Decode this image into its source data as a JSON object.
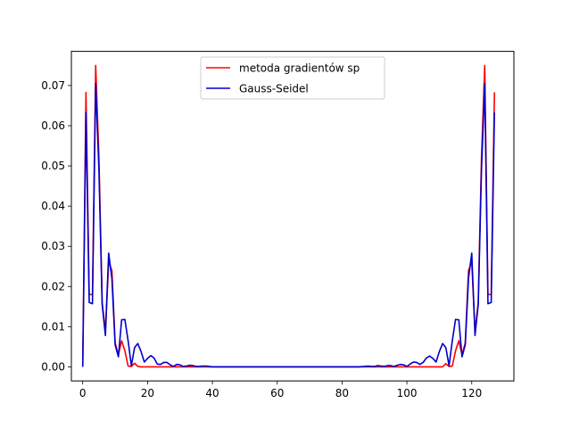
{
  "chart_data": {
    "type": "line",
    "title": "",
    "xlabel": "",
    "ylabel": "",
    "xlim": [
      -3.5,
      133.0
    ],
    "ylim": [
      -0.0035,
      0.0785
    ],
    "xticks": [
      0,
      20,
      40,
      60,
      80,
      100,
      120
    ],
    "xtick_labels": [
      "0",
      "20",
      "40",
      "60",
      "80",
      "100",
      "120"
    ],
    "yticks": [
      0.0,
      0.01,
      0.02,
      0.03,
      0.04,
      0.05,
      0.06,
      0.07
    ],
    "ytick_labels": [
      "0.00",
      "0.01",
      "0.02",
      "0.03",
      "0.04",
      "0.05",
      "0.06",
      "0.07"
    ],
    "grid": false,
    "legend_position": "top-center",
    "series": [
      {
        "name": "metoda gradientów sp",
        "color": "#ff0000",
        "x": [
          0,
          1,
          2,
          3,
          4,
          5,
          6,
          7,
          8,
          9,
          10,
          11,
          12,
          13,
          14,
          15,
          16,
          17,
          18,
          30,
          60,
          90,
          108,
          109,
          110,
          111,
          112,
          113,
          114,
          115,
          116,
          117,
          118,
          119,
          120,
          121,
          122,
          123,
          124,
          125,
          126,
          127
        ],
        "y": [
          0.0,
          0.0683,
          0.018,
          0.018,
          0.075,
          0.052,
          0.016,
          0.009,
          0.026,
          0.024,
          0.006,
          0.003,
          0.0065,
          0.004,
          0.0002,
          0.0001,
          0.0009,
          0.0001,
          0.0,
          0.0,
          0.0,
          0.0,
          0.0,
          0.0,
          0.0,
          0.0,
          0.0008,
          0.0001,
          0.0002,
          0.004,
          0.0065,
          0.003,
          0.006,
          0.024,
          0.026,
          0.009,
          0.016,
          0.052,
          0.075,
          0.018,
          0.018,
          0.0683
        ]
      },
      {
        "name": "Gauss-Seidel",
        "color": "#0000cc",
        "x": [
          0,
          1,
          2,
          3,
          4,
          5,
          6,
          7,
          8,
          9,
          10,
          11,
          12,
          13,
          14,
          15,
          16,
          17,
          18,
          19,
          20,
          21,
          22,
          23,
          24,
          25,
          26,
          27,
          28,
          29,
          30,
          31,
          32,
          33,
          34,
          35,
          36,
          37,
          38,
          39,
          40,
          45,
          50,
          60,
          70,
          80,
          85,
          87,
          88,
          89,
          90,
          91,
          92,
          93,
          94,
          95,
          96,
          97,
          98,
          99,
          100,
          101,
          102,
          103,
          104,
          105,
          106,
          107,
          108,
          109,
          110,
          111,
          112,
          113,
          114,
          115,
          116,
          117,
          118,
          119,
          120,
          121,
          122,
          123,
          124,
          125,
          126,
          127
        ],
        "y": [
          0.0,
          0.0633,
          0.016,
          0.0157,
          0.0705,
          0.049,
          0.0155,
          0.0078,
          0.0283,
          0.022,
          0.0055,
          0.0025,
          0.0117,
          0.0118,
          0.0065,
          0.0003,
          0.0048,
          0.0058,
          0.0038,
          0.0012,
          0.0021,
          0.0028,
          0.0022,
          0.0007,
          0.0006,
          0.0011,
          0.0011,
          0.0005,
          0.0001,
          0.0006,
          0.0005,
          0.0001,
          0.0002,
          0.0004,
          0.0003,
          0.0001,
          0.0001,
          0.0002,
          0.0002,
          0.0001,
          0.0,
          0.0,
          0.0,
          0.0,
          0.0,
          0.0,
          0.0,
          0.0001,
          0.0002,
          0.0001,
          0.0001,
          0.0003,
          0.0002,
          0.0001,
          0.0003,
          0.0003,
          0.0001,
          0.0004,
          0.0006,
          0.0005,
          0.0001,
          0.0007,
          0.0012,
          0.0011,
          0.0006,
          0.0011,
          0.0022,
          0.0027,
          0.0021,
          0.0012,
          0.0038,
          0.0058,
          0.0048,
          0.0003,
          0.0065,
          0.0118,
          0.0117,
          0.0025,
          0.0055,
          0.022,
          0.0283,
          0.0078,
          0.0155,
          0.049,
          0.0705,
          0.0157,
          0.016,
          0.0633
        ]
      }
    ]
  }
}
